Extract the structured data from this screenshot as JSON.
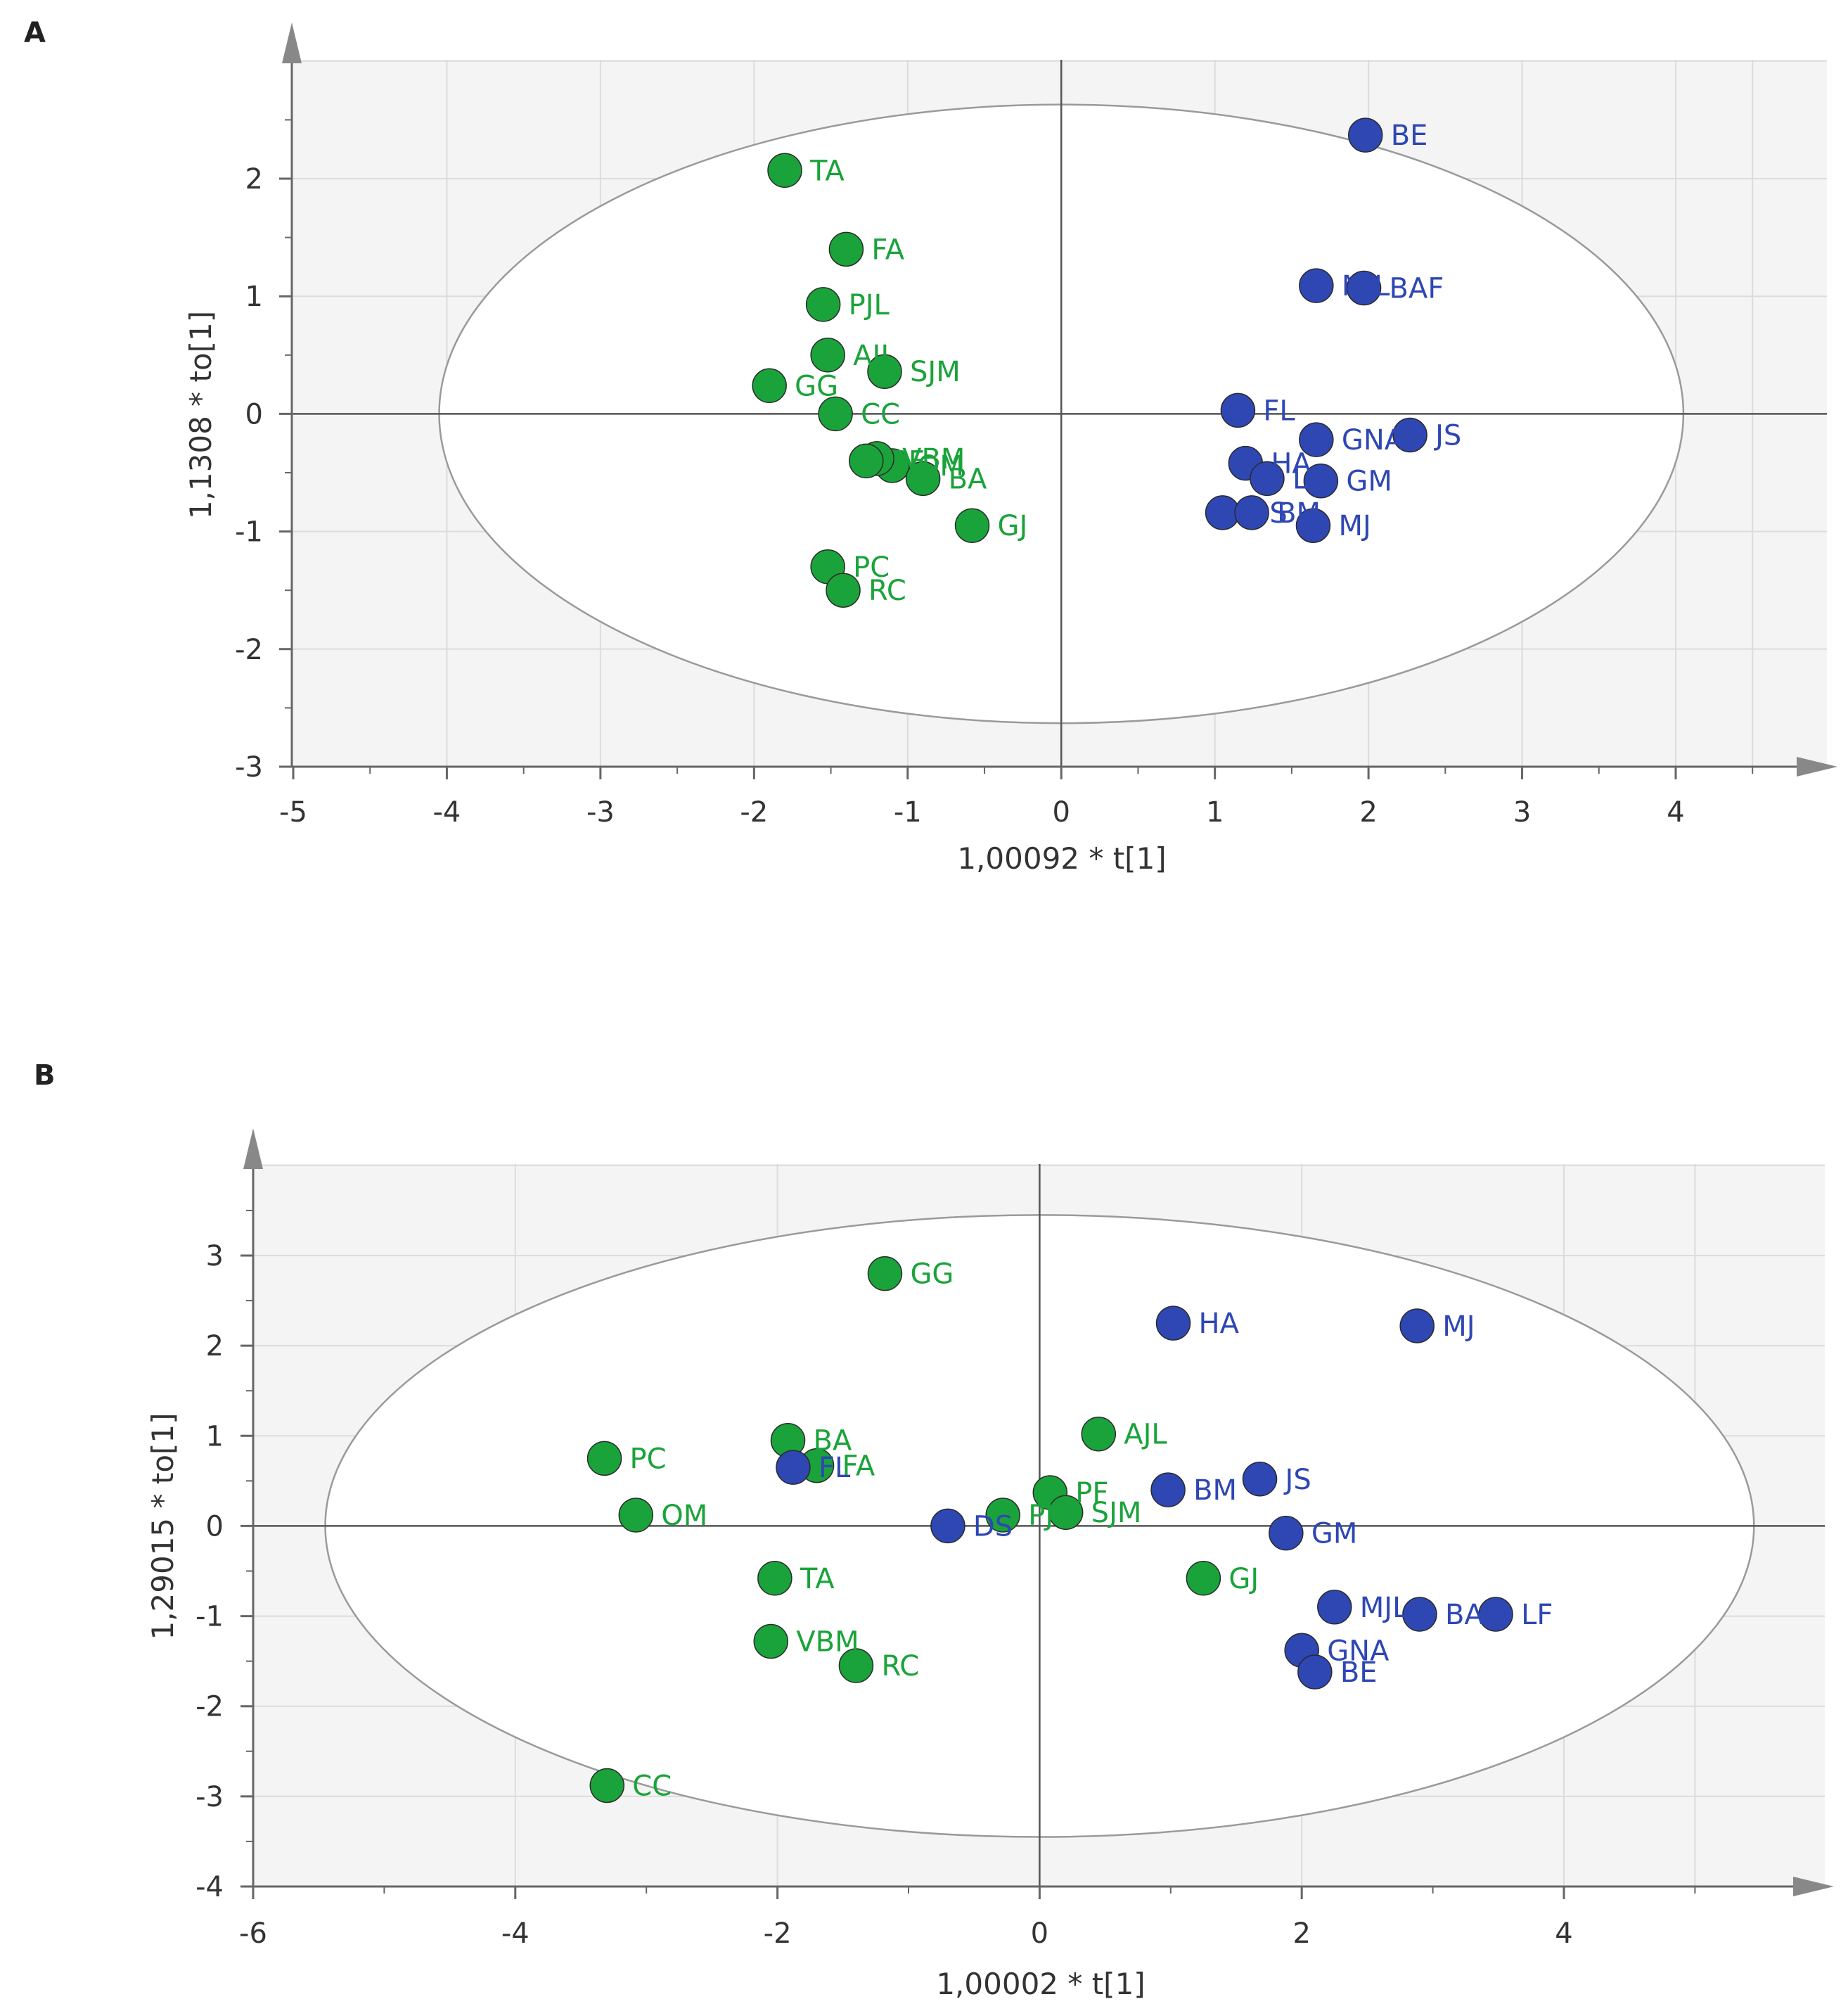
{
  "panels": {
    "a": {
      "letter": "A"
    },
    "b": {
      "letter": "B"
    }
  },
  "colors": {
    "group1": "#1aa33a",
    "group2": "#2e47b3"
  },
  "chart_data": [
    {
      "type": "scatter",
      "xlabel": "1,00092 * t[1]",
      "ylabel": "1,1308 * to[1]",
      "xlim": [
        -5,
        5
      ],
      "ylim": [
        -3,
        3
      ],
      "xticks": [
        -5,
        -4,
        -3,
        -2,
        -1,
        0,
        1,
        2,
        3,
        4
      ],
      "yticks": [
        -3,
        -2,
        -1,
        0,
        1,
        2
      ],
      "grid": true,
      "ellipse": {
        "cx": 0,
        "cy": 0,
        "rx": 4.05,
        "ry": 2.63
      },
      "points": [
        {
          "label": "TA",
          "x": -1.8,
          "y": 2.07,
          "group": "group1"
        },
        {
          "label": "FA",
          "x": -1.4,
          "y": 1.4,
          "group": "group1"
        },
        {
          "label": "PJL",
          "x": -1.55,
          "y": 0.93,
          "group": "group1"
        },
        {
          "label": "AJL",
          "x": -1.52,
          "y": 0.5,
          "group": "group1"
        },
        {
          "label": "SJM",
          "x": -1.15,
          "y": 0.36,
          "group": "group1"
        },
        {
          "label": "GG",
          "x": -1.9,
          "y": 0.24,
          "group": "group1"
        },
        {
          "label": "CC",
          "x": -1.47,
          "y": 0.0,
          "group": "group1"
        },
        {
          "label": "OM",
          "x": -1.1,
          "y": -0.44,
          "group": "group1"
        },
        {
          "label": "VBM",
          "x": -1.2,
          "y": -0.38,
          "group": "group1"
        },
        {
          "label": "PF",
          "x": -1.27,
          "y": -0.4,
          "group": "group1"
        },
        {
          "label": "BA",
          "x": -0.9,
          "y": -0.55,
          "group": "group1"
        },
        {
          "label": "GJ",
          "x": -0.58,
          "y": -0.95,
          "group": "group1"
        },
        {
          "label": "PC",
          "x": -1.52,
          "y": -1.3,
          "group": "group1"
        },
        {
          "label": "RC",
          "x": -1.42,
          "y": -1.5,
          "group": "group1"
        },
        {
          "label": "BE",
          "x": 1.98,
          "y": 2.37,
          "group": "group2"
        },
        {
          "label": "MJL",
          "x": 1.66,
          "y": 1.09,
          "group": "group2"
        },
        {
          "label": "BAF",
          "x": 1.97,
          "y": 1.07,
          "group": "group2"
        },
        {
          "label": "FL",
          "x": 1.15,
          "y": 0.03,
          "group": "group2"
        },
        {
          "label": "GNA",
          "x": 1.66,
          "y": -0.22,
          "group": "group2"
        },
        {
          "label": "JS",
          "x": 2.27,
          "y": -0.18,
          "group": "group2"
        },
        {
          "label": "HA",
          "x": 1.2,
          "y": -0.42,
          "group": "group2"
        },
        {
          "label": "LF",
          "x": 1.34,
          "y": -0.55,
          "group": "group2"
        },
        {
          "label": "GM",
          "x": 1.69,
          "y": -0.57,
          "group": "group2"
        },
        {
          "label": "DS",
          "x": 1.05,
          "y": -0.84,
          "group": "group2"
        },
        {
          "label": "BM",
          "x": 1.24,
          "y": -0.84,
          "group": "group2"
        },
        {
          "label": "MJ",
          "x": 1.64,
          "y": -0.95,
          "group": "group2"
        }
      ]
    },
    {
      "type": "scatter",
      "xlabel": "1,00002 * t[1]",
      "ylabel": "1,29015 * to[1]",
      "xlim": [
        -6,
        6
      ],
      "ylim": [
        -4,
        4
      ],
      "xticks": [
        -6,
        -4,
        -2,
        0,
        2,
        4
      ],
      "yticks": [
        -4,
        -3,
        -2,
        -1,
        0,
        1,
        2,
        3
      ],
      "grid": true,
      "ellipse": {
        "cx": 0,
        "cy": 0,
        "rx": 5.45,
        "ry": 3.45
      },
      "points": [
        {
          "label": "GG",
          "x": -1.18,
          "y": 2.8,
          "group": "group1"
        },
        {
          "label": "PC",
          "x": -3.32,
          "y": 0.75,
          "group": "group1"
        },
        {
          "label": "BA",
          "x": -1.92,
          "y": 0.95,
          "group": "group1"
        },
        {
          "label": "FA",
          "x": -1.7,
          "y": 0.67,
          "group": "group1"
        },
        {
          "label": "OM",
          "x": -3.08,
          "y": 0.12,
          "group": "group1"
        },
        {
          "label": "TA",
          "x": -2.02,
          "y": -0.58,
          "group": "group1"
        },
        {
          "label": "VBM",
          "x": -2.05,
          "y": -1.28,
          "group": "group1"
        },
        {
          "label": "RC",
          "x": -1.4,
          "y": -1.55,
          "group": "group1"
        },
        {
          "label": "CC",
          "x": -3.3,
          "y": -2.88,
          "group": "group1"
        },
        {
          "label": "PJL",
          "x": -0.28,
          "y": 0.12,
          "group": "group1"
        },
        {
          "label": "PF",
          "x": 0.08,
          "y": 0.37,
          "group": "group1"
        },
        {
          "label": "SJM",
          "x": 0.2,
          "y": 0.15,
          "group": "group1"
        },
        {
          "label": "AJL",
          "x": 0.45,
          "y": 1.02,
          "group": "group1"
        },
        {
          "label": "GJ",
          "x": 1.25,
          "y": -0.58,
          "group": "group1"
        },
        {
          "label": "FL",
          "x": -1.88,
          "y": 0.65,
          "group": "group2"
        },
        {
          "label": "DS",
          "x": -0.7,
          "y": 0.0,
          "group": "group2"
        },
        {
          "label": "HA",
          "x": 1.02,
          "y": 2.25,
          "group": "group2"
        },
        {
          "label": "MJ",
          "x": 2.88,
          "y": 2.22,
          "group": "group2"
        },
        {
          "label": "BM",
          "x": 0.98,
          "y": 0.4,
          "group": "group2"
        },
        {
          "label": "JS",
          "x": 1.68,
          "y": 0.52,
          "group": "group2"
        },
        {
          "label": "GM",
          "x": 1.88,
          "y": -0.08,
          "group": "group2"
        },
        {
          "label": "MJL",
          "x": 2.25,
          "y": -0.9,
          "group": "group2"
        },
        {
          "label": "BAF",
          "x": 2.9,
          "y": -0.98,
          "group": "group2"
        },
        {
          "label": "LF",
          "x": 3.48,
          "y": -0.98,
          "group": "group2"
        },
        {
          "label": "GNA",
          "x": 2.0,
          "y": -1.38,
          "group": "group2"
        },
        {
          "label": "BE",
          "x": 2.1,
          "y": -1.62,
          "group": "group2"
        }
      ]
    }
  ]
}
